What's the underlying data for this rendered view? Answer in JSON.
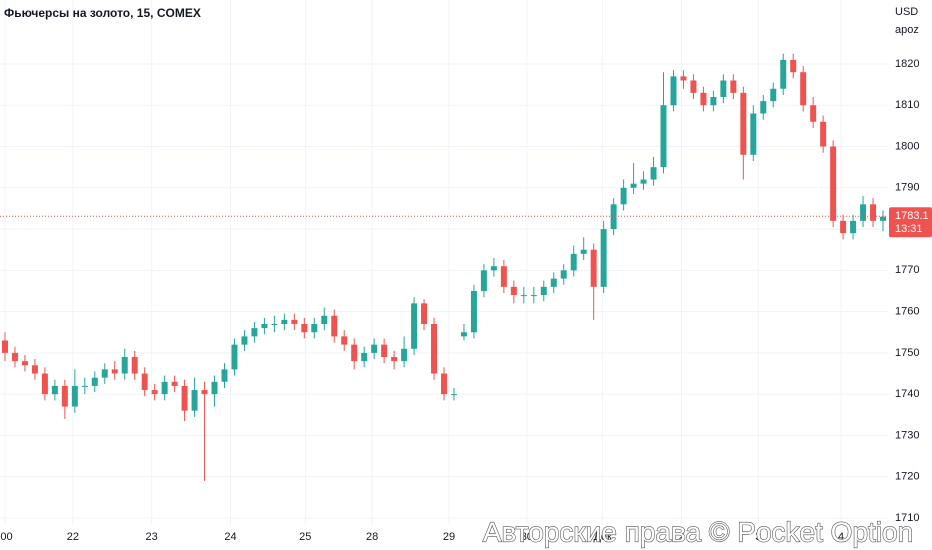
{
  "chart_data": {
    "type": "candlestick",
    "title": "Фьючерсы на золото, 15, COMEX",
    "currency": "USD",
    "axis_mode": "apoz",
    "watermark": "Авторские права © Pocket Option",
    "up_color": "#26a69a",
    "down_color": "#ef5350",
    "ylim": [
      1708.3,
      1835.5
    ],
    "yticks": [
      1710,
      1720,
      1730,
      1740,
      1750,
      1760,
      1770,
      1780,
      1790,
      1800,
      1810,
      1820
    ],
    "xlim": [
      -0.5,
      88.5
    ],
    "xticks": [
      {
        "value": 0,
        "label": ":00"
      },
      {
        "value": 6.8,
        "label": "22"
      },
      {
        "value": 14.7,
        "label": "23"
      },
      {
        "value": 22.6,
        "label": "24"
      },
      {
        "value": 30.1,
        "label": "25"
      },
      {
        "value": 36.8,
        "label": "28"
      },
      {
        "value": 44.5,
        "label": "29"
      },
      {
        "value": 52.3,
        "label": "30"
      },
      {
        "value": 59.9,
        "label": "Дек"
      },
      {
        "value": 67.8,
        "label": "2"
      },
      {
        "value": 75.5,
        "label": "3"
      },
      {
        "value": 83.8,
        "label": "4"
      }
    ],
    "grid": true,
    "last_price": 1783.1,
    "countdown": "13:31",
    "open": [
      1753,
      1750,
      1748,
      1747,
      1745,
      1740,
      1742,
      1737,
      1742,
      1742,
      1744,
      1746,
      1745,
      1749,
      1745,
      1741,
      1740,
      1743,
      1742,
      1736,
      1741,
      1740,
      1743,
      1746,
      1752,
      1754,
      1756,
      1757,
      1757,
      1758,
      1757,
      1755,
      1757,
      1759,
      1754,
      1752,
      1748,
      1750,
      1752,
      1749,
      1748,
      1751,
      1762,
      1757,
      1745,
      1740,
      1754,
      1755,
      1765,
      1770,
      1771,
      1766,
      1764,
      1764,
      1764,
      1766,
      1768,
      1770,
      1774,
      1775,
      1766,
      1780,
      1786,
      1790,
      1791,
      1792,
      1795,
      1810,
      1817,
      1816,
      1813,
      1810,
      1812,
      1816,
      1813,
      1798,
      1808,
      1811,
      1814,
      1821,
      1818,
      1810,
      1806,
      1800,
      1782,
      1779,
      1782,
      1786,
      1782
    ],
    "high": [
      1755,
      1751.5,
      1749.5,
      1748.5,
      1746.5,
      1743.5,
      1743.5,
      1746,
      1744,
      1745.5,
      1747.5,
      1748,
      1751,
      1750.5,
      1746.5,
      1742.5,
      1744.5,
      1744.5,
      1743.5,
      1744,
      1743,
      1744.5,
      1747.5,
      1753.5,
      1755.5,
      1757.5,
      1758.5,
      1759,
      1759.5,
      1759.5,
      1758.5,
      1758.5,
      1761,
      1760.5,
      1755.5,
      1753.5,
      1751.5,
      1753.5,
      1753.5,
      1750.5,
      1754,
      1763.5,
      1763,
      1758.5,
      1746.5,
      1741.5,
      1757,
      1766.5,
      1771.5,
      1773,
      1772.5,
      1767.5,
      1766,
      1766,
      1767.5,
      1769.5,
      1771.5,
      1776,
      1778,
      1776.5,
      1782,
      1787.5,
      1792,
      1796,
      1794,
      1797.5,
      1818,
      1818.5,
      1818.5,
      1817.5,
      1814.5,
      1813.5,
      1817.5,
      1817.5,
      1814.5,
      1810,
      1812.5,
      1815.5,
      1822.5,
      1822.5,
      1819.5,
      1812,
      1807.5,
      1801.5,
      1783.5,
      1783.5,
      1788,
      1787.5,
      1784.5
    ],
    "low": [
      1748,
      1746.5,
      1745.5,
      1743.5,
      1738.5,
      1738.5,
      1734,
      1735.5,
      1740,
      1740.5,
      1742.5,
      1743.5,
      1743.5,
      1743.5,
      1739.5,
      1738.5,
      1738.5,
      1740.5,
      1733.5,
      1734.5,
      1719,
      1737,
      1741.5,
      1744.5,
      1750.5,
      1752.5,
      1754.5,
      1755,
      1755.5,
      1755.5,
      1753.5,
      1753.5,
      1755.5,
      1752.5,
      1750.5,
      1746,
      1746.5,
      1748.5,
      1747.5,
      1746,
      1746.5,
      1749.5,
      1755.5,
      1743.5,
      1738.5,
      1738.5,
      1753,
      1753.5,
      1763.5,
      1768.5,
      1764.5,
      1762,
      1762,
      1762,
      1762.5,
      1764.5,
      1766.5,
      1768.5,
      1772.5,
      1758,
      1764.5,
      1778.5,
      1784.5,
      1788.5,
      1789.5,
      1790.5,
      1793.5,
      1808.5,
      1814,
      1811.5,
      1808.5,
      1808.5,
      1810.5,
      1811.5,
      1792,
      1796.5,
      1806.5,
      1809.5,
      1812.5,
      1816.5,
      1808.5,
      1804.5,
      1798.5,
      1780.5,
      1777.5,
      1777.5,
      1780.5,
      1780.5,
      1779.5
    ],
    "close": [
      1750,
      1748,
      1747,
      1745,
      1740,
      1742,
      1737,
      1742,
      1742,
      1744,
      1746,
      1745,
      1749,
      1745,
      1741,
      1740,
      1743,
      1742,
      1736,
      1741,
      1740,
      1743,
      1746,
      1752,
      1754,
      1756,
      1757,
      1757,
      1758,
      1757,
      1755,
      1757,
      1759,
      1754,
      1752,
      1748,
      1750,
      1752,
      1749,
      1748,
      1751,
      1762,
      1757,
      1745,
      1740,
      1740,
      1755,
      1765,
      1770,
      1771,
      1766,
      1764,
      1764,
      1764,
      1766,
      1768,
      1770,
      1774,
      1775,
      1766,
      1780,
      1786,
      1790,
      1791,
      1792,
      1795,
      1810,
      1817,
      1816,
      1813,
      1810,
      1812,
      1816,
      1813,
      1798,
      1808,
      1811,
      1814,
      1821,
      1818,
      1810,
      1806,
      1800,
      1782,
      1779,
      1782,
      1786,
      1782,
      1783
    ]
  }
}
